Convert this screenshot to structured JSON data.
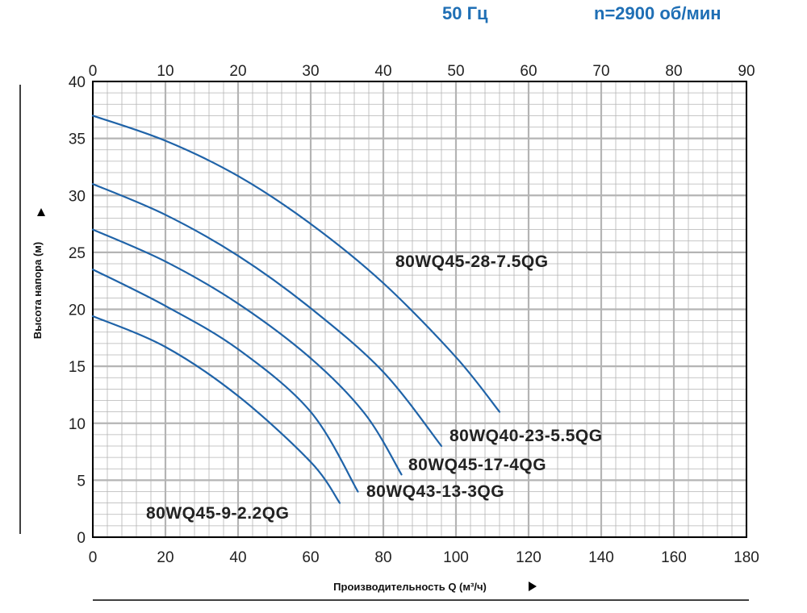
{
  "header": {
    "frequency": "50 Гц",
    "speed": "n=2900 об/мин"
  },
  "chart_data": {
    "type": "line",
    "title": "",
    "xlabel": "Производительность Q (м³/ч)",
    "ylabel": "Высота напора (м)",
    "xlim": [
      0,
      180
    ],
    "ylim": [
      0,
      40
    ],
    "x_ticks": [
      "0",
      "20",
      "40",
      "60",
      "80",
      "100",
      "120",
      "140",
      "160",
      "180"
    ],
    "y_ticks": [
      "0",
      "5",
      "10",
      "15",
      "20",
      "25",
      "30",
      "35",
      "40"
    ],
    "top_axis": {
      "xlim": [
        0,
        90
      ],
      "ticks": [
        "0",
        "10",
        "20",
        "30",
        "40",
        "50",
        "60",
        "70",
        "80",
        "90"
      ]
    },
    "grid": true,
    "colors": {
      "curve": "#1f63a8",
      "grid": "#b4b4b4",
      "axis": "#000000"
    },
    "series": [
      {
        "name": "80WQ45-28-7.5QG",
        "x": [
          0,
          20,
          40,
          60,
          80,
          100,
          112
        ],
        "y": [
          37,
          34.8,
          31.7,
          27.5,
          22.3,
          15.8,
          11
        ]
      },
      {
        "name": "80WQ40-23-5.5QG",
        "x": [
          0,
          20,
          40,
          60,
          80,
          96
        ],
        "y": [
          31,
          28.3,
          24.7,
          20.1,
          14.5,
          8
        ]
      },
      {
        "name": "80WQ45-17-4QG",
        "x": [
          0,
          20,
          40,
          60,
          75,
          85
        ],
        "y": [
          27,
          24.2,
          20.5,
          15.7,
          10.8,
          5.5
        ]
      },
      {
        "name": "80WQ43-13-3QG",
        "x": [
          0,
          20,
          40,
          60,
          73
        ],
        "y": [
          23.5,
          20.3,
          16.5,
          11,
          4
        ]
      },
      {
        "name": "80WQ45-9-2.2QG",
        "x": [
          0,
          20,
          40,
          60,
          68
        ],
        "y": [
          19.4,
          16.7,
          12.4,
          6.6,
          3
        ]
      }
    ]
  }
}
